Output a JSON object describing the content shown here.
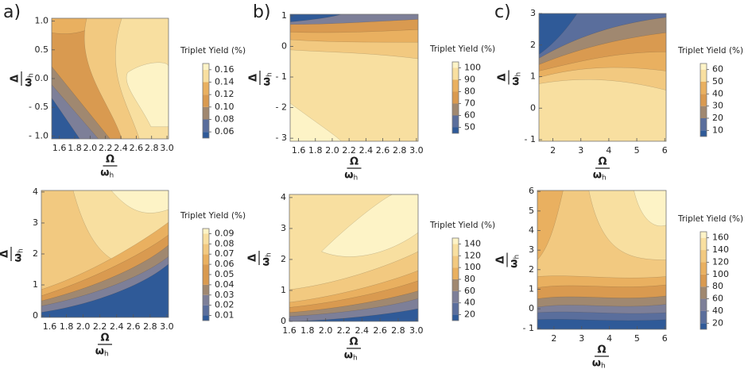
{
  "chart_data": [
    {
      "type": "contour",
      "panel_label": "a)",
      "xlim": [
        1.5,
        3.02
      ],
      "xticks": [
        1.6,
        1.8,
        {
          "value": 2,
          "label": "2.0"
        },
        2.2,
        2.4,
        2.6,
        2.8,
        {
          "value": 3,
          "label": "3.0"
        }
      ],
      "ylim": [
        -1.05,
        1.05
      ],
      "yticks": [
        {
          "value": -1,
          "label": "- 1.0"
        },
        {
          "value": -0.5,
          "label": "- 0.5"
        },
        {
          "value": 0,
          "label": "0.0"
        },
        0.5,
        {
          "value": 1,
          "label": "1.0"
        }
      ],
      "x_label": {
        "numerator": "Ω",
        "denominator": "ω",
        "subscript": "h"
      },
      "y_label": {
        "numerator": "Δ",
        "denominator": "ω",
        "subscript": "h"
      },
      "colorbar_title": "Triplet Yield (%)",
      "colorbar_lim": [
        0.05,
        0.17
      ],
      "colorbar_ticks": [
        0.06,
        0.08,
        {
          "value": 0.1,
          "label": "0.10"
        },
        0.12,
        0.14,
        0.16
      ]
    },
    {
      "type": "contour",
      "xlim": [
        1.5,
        3.02
      ],
      "xticks": [
        1.6,
        1.8,
        {
          "value": 2,
          "label": "2.0"
        },
        2.2,
        2.4,
        2.6,
        2.8,
        {
          "value": 3,
          "label": "3.0"
        }
      ],
      "ylim": [
        -0.05,
        4.05
      ],
      "yticks": [
        0,
        1,
        2,
        3,
        4
      ],
      "x_label": {
        "numerator": "Ω",
        "denominator": "ω",
        "subscript": "h"
      },
      "y_label": {
        "numerator": "Δ",
        "denominator": "ω",
        "subscript": "h"
      },
      "colorbar_title": "Triplet Yield (%)",
      "colorbar_lim": [
        0.005,
        0.095
      ],
      "colorbar_ticks": [
        0.01,
        0.02,
        0.03,
        0.04,
        0.05,
        0.06,
        0.07,
        0.08,
        0.09
      ]
    },
    {
      "type": "contour",
      "panel_label": "b)",
      "xlim": [
        1.5,
        3.02
      ],
      "xticks": [
        1.6,
        1.8,
        {
          "value": 2,
          "label": "2.0"
        },
        2.2,
        2.4,
        2.6,
        2.8,
        {
          "value": 3,
          "label": "3.0"
        }
      ],
      "ylim": [
        -3.1,
        1.05
      ],
      "yticks": [
        {
          "value": -3,
          "label": "- 3"
        },
        {
          "value": -2,
          "label": "- 2"
        },
        {
          "value": -1,
          "label": "- 1"
        },
        0,
        1
      ],
      "x_label": {
        "numerator": "Ω",
        "denominator": "ω",
        "subscript": "h"
      },
      "y_label": {
        "numerator": "Δ",
        "denominator": "ω",
        "subscript": "h"
      },
      "colorbar_title": "Triplet Yield (%)",
      "colorbar_lim": [
        45,
        105
      ],
      "colorbar_ticks": [
        50,
        60,
        70,
        80,
        90,
        100
      ]
    },
    {
      "type": "contour",
      "xlim": [
        1.6,
        3.02
      ],
      "xticks": [
        1.6,
        1.8,
        {
          "value": 2,
          "label": "2.0"
        },
        2.2,
        2.4,
        2.6,
        2.8,
        {
          "value": 3,
          "label": "3.0"
        }
      ],
      "ylim": [
        0,
        4.1
      ],
      "yticks": [
        0,
        1,
        2,
        3,
        4
      ],
      "x_label": {
        "numerator": "Ω",
        "denominator": "ω",
        "subscript": "h"
      },
      "y_label": {
        "numerator": "Δ",
        "denominator": "ω",
        "subscript": "h"
      },
      "colorbar_title": "Triplet Yield (%)",
      "colorbar_lim": [
        10,
        150
      ],
      "colorbar_ticks": [
        20,
        40,
        60,
        80,
        100,
        120,
        140
      ]
    },
    {
      "type": "contour",
      "panel_label": "c)",
      "xlim": [
        1.5,
        6.05
      ],
      "xticks": [
        2,
        3,
        4,
        5,
        6
      ],
      "ylim": [
        -1.05,
        3
      ],
      "yticks": [
        {
          "value": -1,
          "label": "- 1"
        },
        0,
        1,
        2,
        3
      ],
      "x_label": {
        "numerator": "Ω",
        "denominator": "ω",
        "subscript": "h"
      },
      "y_label": {
        "numerator": "Δ",
        "denominator": "ω",
        "subscript": "h"
      },
      "colorbar_title": "Triplet Yield (%)",
      "colorbar_lim": [
        5,
        65
      ],
      "colorbar_ticks": [
        10,
        20,
        30,
        40,
        50,
        60
      ]
    },
    {
      "type": "contour",
      "xlim": [
        1.4,
        6.05
      ],
      "xticks": [
        2,
        3,
        4,
        5,
        6
      ],
      "ylim": [
        -1.05,
        6.05
      ],
      "yticks": [
        {
          "value": -1,
          "label": "- 1"
        },
        0,
        1,
        2,
        3,
        4,
        5,
        6
      ],
      "x_label": {
        "numerator": "Ω",
        "denominator": "ω",
        "subscript": "h"
      },
      "y_label": {
        "numerator": "Δ",
        "denominator": "ω",
        "subscript": "h"
      },
      "colorbar_title": "Triplet Yield (%)",
      "colorbar_lim": [
        10,
        170
      ],
      "colorbar_ticks": [
        20,
        40,
        60,
        80,
        100,
        120,
        140,
        160
      ]
    }
  ],
  "colormap": [
    "#fdf3c6",
    "#f8dfa0",
    "#f2c980",
    "#e9b060",
    "#d99a50",
    "#a08870",
    "#7d7f98",
    "#5a6e9c",
    "#2f5a98"
  ]
}
